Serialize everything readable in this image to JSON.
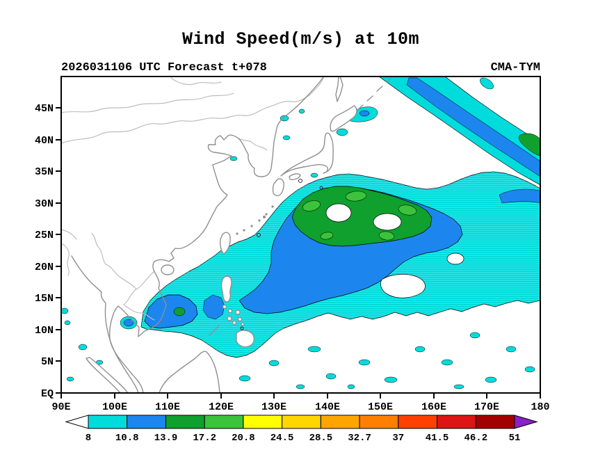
{
  "title": "Wind Speed(m/s) at 10m",
  "header": {
    "left": "2026031106 UTC Forecast t+078",
    "right": "CMA-TYM"
  },
  "chart_data": {
    "type": "heatmap",
    "title": "Wind Speed(m/s) at 10m",
    "variable": "10 m wind speed (m/s)",
    "model": "CMA-TYM",
    "init_and_lead": "2026031106 UTC Forecast t+078",
    "x_axis": {
      "ticks": [
        "90E",
        "100E",
        "110E",
        "120E",
        "130E",
        "140E",
        "150E",
        "160E",
        "170E",
        "180"
      ],
      "range_deg_east": [
        90,
        180
      ]
    },
    "y_axis": {
      "ticks": [
        "EQ",
        "5N",
        "10N",
        "15N",
        "20N",
        "25N",
        "30N",
        "35N",
        "40N",
        "45N"
      ],
      "range_deg_north": [
        0,
        50
      ]
    },
    "grid": false,
    "legend_position": "bottom-colorbar",
    "colorbar": {
      "levels": [
        "8",
        "10.8",
        "13.9",
        "17.2",
        "20.8",
        "24.5",
        "28.5",
        "32.7",
        "37",
        "41.5",
        "46.2",
        "51"
      ],
      "colors": [
        "#00DCDC",
        "#1C86EE",
        "#0FA02D",
        "#3CC33C",
        "#FFFF00",
        "#FFD700",
        "#FFA500",
        "#FF7F00",
        "#FF4000",
        "#DC1414",
        "#A30000"
      ],
      "underflow": "#FFFFFF",
      "overflow": "#8B20C8"
    },
    "map": {
      "coastline_color": "#8f8f8f",
      "border_color": "#bdbdbd",
      "contour_color": "#000000",
      "background": "#FFFFFF"
    },
    "observed_field": {
      "max_filled_band": "17.2-20.8 m/s",
      "features": [
        "Broad >=8 m/s (cyan) area covering the western North Pacific, East China Sea and South China Sea",
        ">=10.8 m/s (blue) comma-shaped band around a cyclone, plus a patch in the South China Sea",
        ">=13.9 m/s (green) ring with white calm eye regions near 140E 30N and 150E 29N",
        "Diagonal >=8 and >=10.8 m/s wind band across the far northeast corner of the domain",
        "Scattered small >=8 m/s patches in the tropics south of 12N and in the Sea of Japan / Okhotsk region"
      ]
    }
  }
}
